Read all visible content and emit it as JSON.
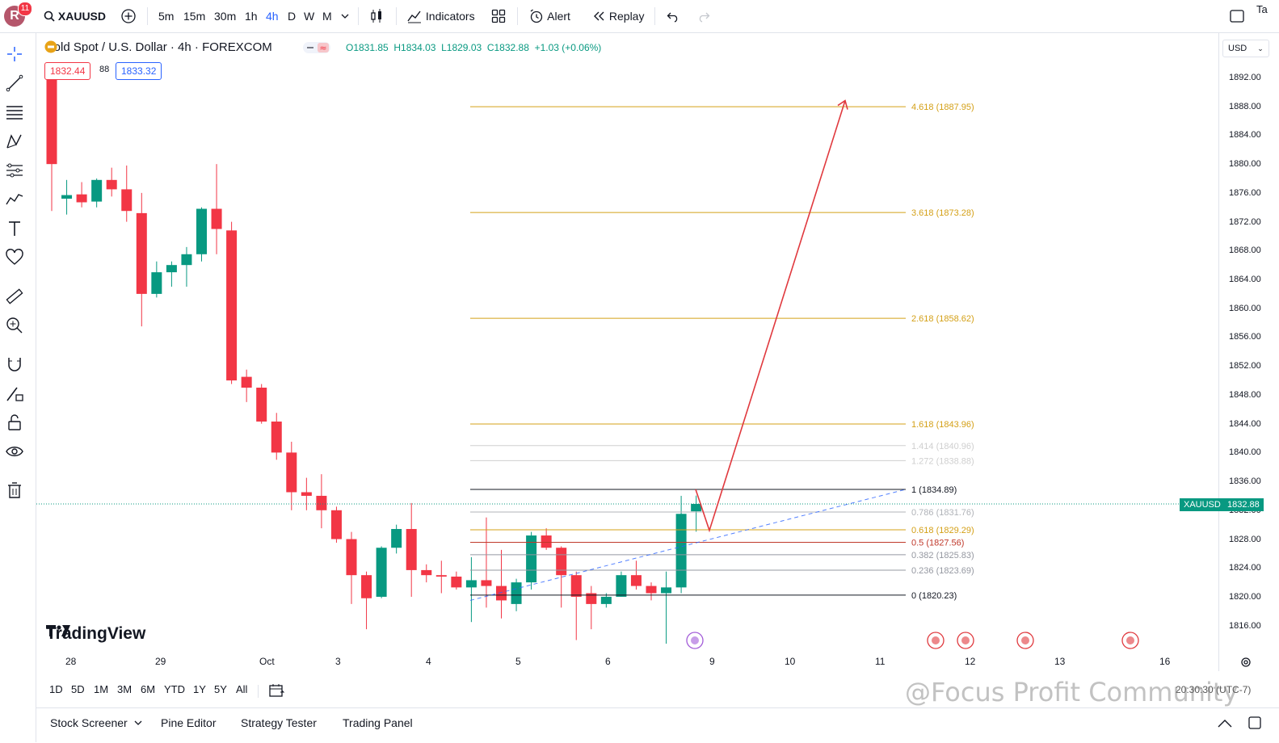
{
  "topbar": {
    "avatar_letter": "R",
    "notification_count": "11",
    "symbol": "XAUUSD",
    "intervals": [
      "5m",
      "15m",
      "30m",
      "1h",
      "4h",
      "D",
      "W",
      "M"
    ],
    "active_interval": "4h",
    "indicators_label": "Indicators",
    "alert_label": "Alert",
    "replay_label": "Replay",
    "right_cut_label": "Ta"
  },
  "chart": {
    "title": "Gold Spot / U.S. Dollar · 4h · FOREXCOM",
    "ohlc": {
      "o": "O1831.85",
      "h": "H1834.03",
      "l": "L1829.03",
      "c": "C1832.88",
      "chg": "+1.03 (+0.06%)"
    },
    "bid": "1832.44",
    "spread": "88",
    "ask": "1833.32",
    "logo": "TradingView",
    "currency": "USD",
    "symbol_tag": "XAUUSD",
    "last_price": "1832.88",
    "colors": {
      "up": "#089981",
      "down": "#f23645",
      "fib": "#d4a017",
      "arrow": "#e0393e"
    }
  },
  "price_axis": [
    "1892.00",
    "1888.00",
    "1884.00",
    "1880.00",
    "1876.00",
    "1872.00",
    "1868.00",
    "1864.00",
    "1860.00",
    "1856.00",
    "1852.00",
    "1848.00",
    "1844.00",
    "1840.00",
    "1836.00",
    "1832.00",
    "1828.00",
    "1824.00",
    "1820.00",
    "1816.00"
  ],
  "time_axis": [
    "28",
    "29",
    "Oct",
    "3",
    "4",
    "5",
    "6",
    "9",
    "10",
    "11",
    "12",
    "13",
    "16"
  ],
  "fib_levels": [
    {
      "label": "4.618 (1887.95)",
      "price": 1887.95,
      "color": "#d4a017",
      "shown": true
    },
    {
      "label": "3.618 (1873.28)",
      "price": 1873.28,
      "color": "#d4a017",
      "shown": true
    },
    {
      "label": "2.618 (1858.62)",
      "price": 1858.62,
      "color": "#d4a017",
      "shown": true
    },
    {
      "label": "1.618 (1843.96)",
      "price": 1843.96,
      "color": "#d4a017",
      "shown": true
    },
    {
      "label": "1.414 (1840.96)",
      "price": 1840.96,
      "color": "#cfcfcf",
      "shown": true
    },
    {
      "label": "1.272 (1838.88)",
      "price": 1838.88,
      "color": "#cfcfcf",
      "shown": true
    },
    {
      "label": "1 (1834.89)",
      "price": 1834.89,
      "color": "#131722",
      "shown": true
    },
    {
      "label": "0.786 (1831.76)",
      "price": 1831.76,
      "color": "#b0b3b8",
      "shown": true
    },
    {
      "label": "0.618 (1829.29)",
      "price": 1829.29,
      "color": "#d4a017",
      "shown": true
    },
    {
      "label": "0.5 (1827.56)",
      "price": 1827.56,
      "color": "#c0392b",
      "shown": true
    },
    {
      "label": "0.382 (1825.83)",
      "price": 1825.83,
      "color": "#9598a1",
      "shown": true
    },
    {
      "label": "0.236 (1823.69)",
      "price": 1823.69,
      "color": "#9598a1",
      "shown": true
    },
    {
      "label": "0 (1820.23)",
      "price": 1820.23,
      "color": "#131722",
      "shown": true
    }
  ],
  "chart_data": {
    "type": "candlestick",
    "candles": [
      {
        "o": 1893.0,
        "h": 1894.0,
        "l": 1873.5,
        "c": 1880.0
      },
      {
        "o": 1875.2,
        "h": 1877.8,
        "l": 1873.0,
        "c": 1875.7
      },
      {
        "o": 1875.8,
        "h": 1877.5,
        "l": 1874.0,
        "c": 1874.7
      },
      {
        "o": 1874.8,
        "h": 1878.0,
        "l": 1874.0,
        "c": 1877.8
      },
      {
        "o": 1877.8,
        "h": 1879.5,
        "l": 1875.5,
        "c": 1876.5
      },
      {
        "o": 1876.5,
        "h": 1879.8,
        "l": 1872.0,
        "c": 1873.5
      },
      {
        "o": 1873.2,
        "h": 1876.0,
        "l": 1857.5,
        "c": 1862.0
      },
      {
        "o": 1862.0,
        "h": 1866.5,
        "l": 1861.5,
        "c": 1865.0
      },
      {
        "o": 1865.0,
        "h": 1866.5,
        "l": 1863.0,
        "c": 1866.0
      },
      {
        "o": 1866.0,
        "h": 1868.5,
        "l": 1863.0,
        "c": 1867.5
      },
      {
        "o": 1867.5,
        "h": 1874.0,
        "l": 1866.5,
        "c": 1873.8
      },
      {
        "o": 1873.8,
        "h": 1880.0,
        "l": 1867.5,
        "c": 1871.0
      },
      {
        "o": 1870.8,
        "h": 1872.0,
        "l": 1849.5,
        "c": 1850.0
      },
      {
        "o": 1850.5,
        "h": 1851.5,
        "l": 1847.0,
        "c": 1849.0
      },
      {
        "o": 1849.0,
        "h": 1849.5,
        "l": 1844.0,
        "c": 1844.3
      },
      {
        "o": 1844.3,
        "h": 1845.5,
        "l": 1839.0,
        "c": 1840.0
      },
      {
        "o": 1840.0,
        "h": 1841.5,
        "l": 1832.0,
        "c": 1834.5
      },
      {
        "o": 1834.5,
        "h": 1836.5,
        "l": 1832.0,
        "c": 1834.0
      },
      {
        "o": 1834.0,
        "h": 1837.0,
        "l": 1829.5,
        "c": 1832.0
      },
      {
        "o": 1832.0,
        "h": 1832.5,
        "l": 1827.5,
        "c": 1828.0
      },
      {
        "o": 1828.0,
        "h": 1829.0,
        "l": 1819.0,
        "c": 1823.0
      },
      {
        "o": 1823.0,
        "h": 1823.5,
        "l": 1815.5,
        "c": 1819.8
      },
      {
        "o": 1820.0,
        "h": 1827.0,
        "l": 1819.8,
        "c": 1826.8
      },
      {
        "o": 1826.8,
        "h": 1830.0,
        "l": 1826.0,
        "c": 1829.4
      },
      {
        "o": 1829.4,
        "h": 1833.0,
        "l": 1820.0,
        "c": 1823.7
      },
      {
        "o": 1823.7,
        "h": 1824.5,
        "l": 1822.0,
        "c": 1823.0
      },
      {
        "o": 1823.0,
        "h": 1825.0,
        "l": 1820.5,
        "c": 1822.8
      },
      {
        "o": 1822.8,
        "h": 1823.5,
        "l": 1821.0,
        "c": 1821.3
      },
      {
        "o": 1821.3,
        "h": 1825.5,
        "l": 1816.5,
        "c": 1822.3
      },
      {
        "o": 1822.3,
        "h": 1831.0,
        "l": 1818.5,
        "c": 1821.5
      },
      {
        "o": 1821.5,
        "h": 1826.5,
        "l": 1817.0,
        "c": 1819.5
      },
      {
        "o": 1819.0,
        "h": 1822.5,
        "l": 1818.0,
        "c": 1822.0
      },
      {
        "o": 1822.0,
        "h": 1829.0,
        "l": 1821.0,
        "c": 1828.5
      },
      {
        "o": 1828.5,
        "h": 1829.5,
        "l": 1826.5,
        "c": 1826.8
      },
      {
        "o": 1826.8,
        "h": 1827.0,
        "l": 1818.5,
        "c": 1823.0
      },
      {
        "o": 1823.0,
        "h": 1823.5,
        "l": 1814.0,
        "c": 1820.0
      },
      {
        "o": 1820.5,
        "h": 1821.5,
        "l": 1815.5,
        "c": 1819.0
      },
      {
        "o": 1819.0,
        "h": 1820.5,
        "l": 1818.5,
        "c": 1820.0
      },
      {
        "o": 1820.0,
        "h": 1823.5,
        "l": 1820.0,
        "c": 1823.0
      },
      {
        "o": 1823.0,
        "h": 1825.0,
        "l": 1821.0,
        "c": 1821.5
      },
      {
        "o": 1821.5,
        "h": 1822.0,
        "l": 1819.5,
        "c": 1820.5
      },
      {
        "o": 1820.5,
        "h": 1823.5,
        "l": 1813.5,
        "c": 1821.3
      },
      {
        "o": 1821.3,
        "h": 1834.0,
        "l": 1820.5,
        "c": 1831.5
      },
      {
        "o": 1831.85,
        "h": 1834.03,
        "l": 1829.03,
        "c": 1832.88
      }
    ],
    "projection_path": [
      [
        1834.89
      ],
      [
        1829.2
      ],
      [
        1888.8
      ]
    ],
    "ylim": [
      1812.5,
      1896.0
    ]
  },
  "range_bar": [
    "1D",
    "5D",
    "1M",
    "3M",
    "6M",
    "YTD",
    "1Y",
    "5Y",
    "All"
  ],
  "bottom_panel": [
    "Stock Screener",
    "Pine Editor",
    "Strategy Tester",
    "Trading Panel"
  ],
  "timestamp_text": "20:30:30 (UTC-7)",
  "watermark": "@Focus Profit Community"
}
